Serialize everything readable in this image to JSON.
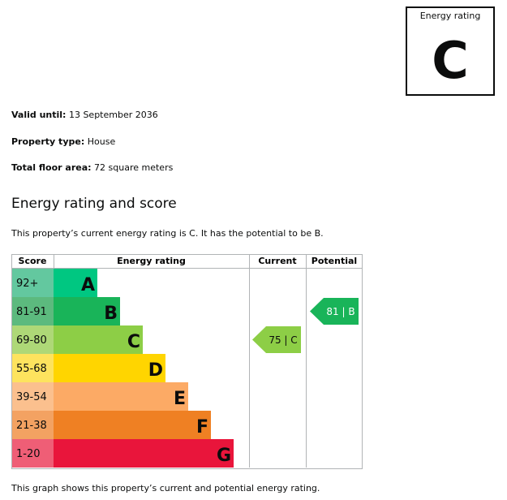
{
  "badge": {
    "label": "Energy rating",
    "letter": "C"
  },
  "details": [
    {
      "label": "Valid until:",
      "value": "13 September 2036"
    },
    {
      "label": "Property type:",
      "value": "House"
    },
    {
      "label": "Total floor area:",
      "value": "72 square meters"
    }
  ],
  "heading": "Energy rating and score",
  "summary": "This property’s current energy rating is C. It has the potential to be B.",
  "table": {
    "headers": [
      "Score",
      "Energy rating",
      "Current",
      "Potential"
    ],
    "bands": [
      {
        "score": "92+",
        "letter": "A",
        "color": "#00c781",
        "score_color": "#63c89f"
      },
      {
        "score": "81-91",
        "letter": "B",
        "color": "#19b459",
        "score_color": "#5cba7e"
      },
      {
        "score": "69-80",
        "letter": "C",
        "color": "#8dce46",
        "score_color": "#aed877"
      },
      {
        "score": "55-68",
        "letter": "D",
        "color": "#ffd500",
        "score_color": "#fde35e"
      },
      {
        "score": "39-54",
        "letter": "E",
        "color": "#fcaa65",
        "score_color": "#fbc08e"
      },
      {
        "score": "21-38",
        "letter": "F",
        "color": "#ef8023",
        "score_color": "#f3a262"
      },
      {
        "score": "1-20",
        "letter": "G",
        "color": "#e9153b",
        "score_color": "#ef5e76"
      }
    ],
    "current": {
      "label": "75 | C",
      "color": "#8dce46"
    },
    "potential": {
      "label": "81 | B",
      "color": "#19b459"
    }
  },
  "footer": "This graph shows this property’s current and potential energy rating."
}
